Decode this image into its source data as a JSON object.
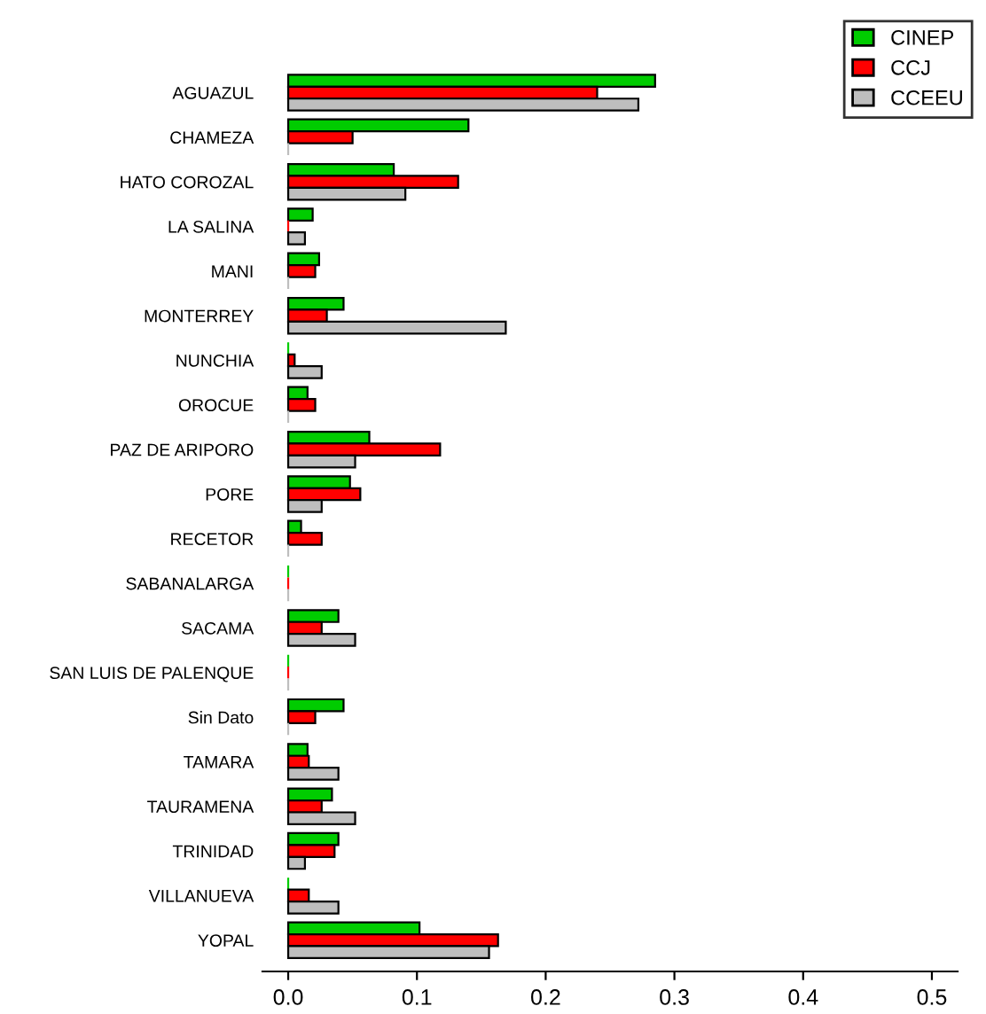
{
  "chart_data": {
    "type": "bar",
    "orientation": "horizontal",
    "categories": [
      "AGUAZUL",
      "CHAMEZA",
      "HATO COROZAL",
      "LA SALINA",
      "MANI",
      "MONTERREY",
      "NUNCHIA",
      "OROCUE",
      "PAZ DE ARIPORO",
      "PORE",
      "RECETOR",
      "SABANALARGA",
      "SACAMA",
      "SAN LUIS DE PALENQUE",
      "Sin Dato",
      "TAMARA",
      "TAURAMENA",
      "TRINIDAD",
      "VILLANUEVA",
      "YOPAL"
    ],
    "series": [
      {
        "name": "CINEP",
        "color": "#00cc00",
        "values": [
          0.285,
          0.14,
          0.082,
          0.019,
          0.024,
          0.043,
          0,
          0.015,
          0.063,
          0.048,
          0.01,
          0,
          0.039,
          0,
          0.043,
          0.015,
          0.034,
          0.039,
          0,
          0.102
        ]
      },
      {
        "name": "CCJ",
        "color": "#ff0000",
        "values": [
          0.24,
          0.05,
          0.132,
          0,
          0.021,
          0.03,
          0.005,
          0.021,
          0.118,
          0.056,
          0.026,
          0,
          0.026,
          0,
          0.021,
          0.016,
          0.026,
          0.036,
          0.016,
          0.163
        ]
      },
      {
        "name": "CCEEU",
        "color": "#bebebe",
        "values": [
          0.272,
          0,
          0.091,
          0.013,
          0,
          0.169,
          0.026,
          0,
          0.052,
          0.026,
          0,
          0,
          0.052,
          0,
          0,
          0.039,
          0.052,
          0.013,
          0.039,
          0.156
        ]
      }
    ],
    "xlim": [
      -0.02,
      0.52
    ],
    "xticks": [
      {
        "value": 0,
        "label": "0.0"
      },
      0.1,
      0.2,
      0.3,
      0.4,
      0.5
    ],
    "grid": false,
    "legend": "top right"
  }
}
